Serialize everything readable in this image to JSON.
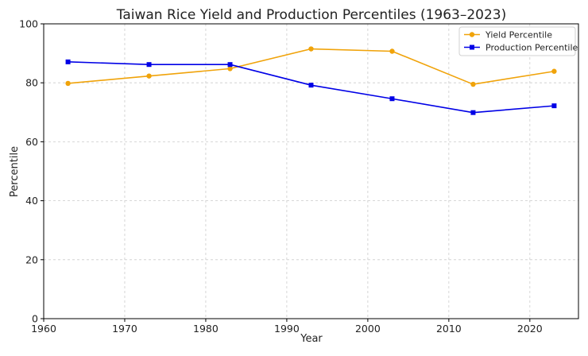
{
  "chart_data": {
    "type": "line",
    "title": "Taiwan Rice Yield and Production Percentiles (1963–2023)",
    "xlabel": "Year",
    "ylabel": "Percentile",
    "xlim": [
      1960,
      2026
    ],
    "ylim": [
      0,
      100
    ],
    "xticks": [
      1960,
      1970,
      1980,
      1990,
      2000,
      2010,
      2020
    ],
    "yticks": [
      0,
      20,
      40,
      60,
      80,
      100
    ],
    "grid": true,
    "legend_position": "top-right",
    "x": [
      1963,
      1973,
      1983,
      1993,
      2003,
      2013,
      2023
    ],
    "series": [
      {
        "name": "Yield Percentile",
        "color": "#f0a30a",
        "marker": "circle",
        "values": [
          79.8,
          82.3,
          84.8,
          91.5,
          90.7,
          79.5,
          83.9
        ]
      },
      {
        "name": "Production Percentile",
        "color": "#0000e6",
        "marker": "square",
        "values": [
          87.1,
          86.2,
          86.2,
          79.2,
          74.6,
          69.9,
          72.2
        ]
      }
    ]
  }
}
